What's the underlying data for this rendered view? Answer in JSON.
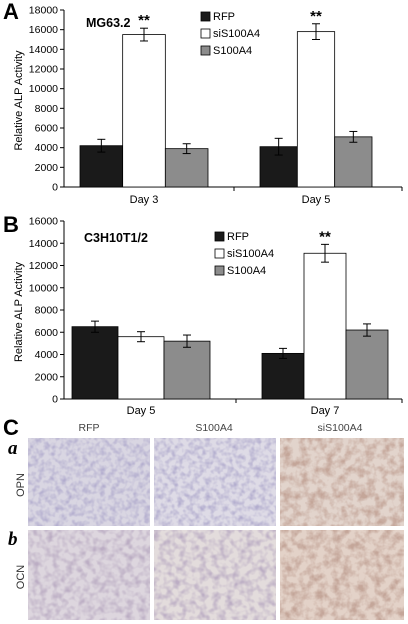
{
  "panels": {
    "A": "A",
    "B": "B",
    "C": "C",
    "Ca": "a",
    "Cb": "b"
  },
  "chart_data": [
    {
      "type": "bar",
      "title": "MG63.2",
      "ylabel": "Relative ALP Activity",
      "categories": [
        "Day 3",
        "Day 5"
      ],
      "series": [
        {
          "name": "RFP",
          "values": [
            4200,
            4100
          ],
          "errors": [
            650,
            850
          ],
          "color": "#1a1a1a"
        },
        {
          "name": "siS100A4",
          "values": [
            15500,
            15800
          ],
          "errors": [
            650,
            800
          ],
          "color": "#ffffff"
        },
        {
          "name": "S100A4",
          "values": [
            3900,
            5100
          ],
          "errors": [
            500,
            550
          ],
          "color": "#8c8c8c"
        }
      ],
      "significance": [
        {
          "label": "**",
          "category": 0,
          "series": 1
        },
        {
          "label": "**",
          "category": 1,
          "series": 1
        }
      ],
      "ylim": [
        0,
        18000
      ],
      "yticks": [
        "0",
        "2000",
        "4000",
        "6000",
        "8000",
        "10000",
        "12000",
        "14000",
        "16000",
        "18000"
      ],
      "legend": "top-right"
    },
    {
      "type": "bar",
      "title": "C3H10T1/2",
      "ylabel": "Relative ALP Activity",
      "categories": [
        "Day 5",
        "Day 7"
      ],
      "series": [
        {
          "name": "RFP",
          "values": [
            6500,
            4100
          ],
          "errors": [
            500,
            450
          ],
          "color": "#1a1a1a"
        },
        {
          "name": "siS100A4",
          "values": [
            5600,
            13100
          ],
          "errors": [
            450,
            800
          ],
          "color": "#ffffff"
        },
        {
          "name": "S100A4",
          "values": [
            5200,
            6200
          ],
          "errors": [
            550,
            550
          ],
          "color": "#8c8c8c"
        }
      ],
      "significance": [
        {
          "label": "**",
          "category": 1,
          "series": 1
        }
      ],
      "ylim": [
        0,
        16000
      ],
      "yticks": [
        "0",
        "2000",
        "4000",
        "6000",
        "8000",
        "10000",
        "12000",
        "14000",
        "16000"
      ],
      "legend": "top-right"
    }
  ],
  "micrographs": {
    "columns": [
      "RFP",
      "S100A4",
      "siS100A4"
    ],
    "rows": [
      "OPN",
      "OCN"
    ]
  }
}
